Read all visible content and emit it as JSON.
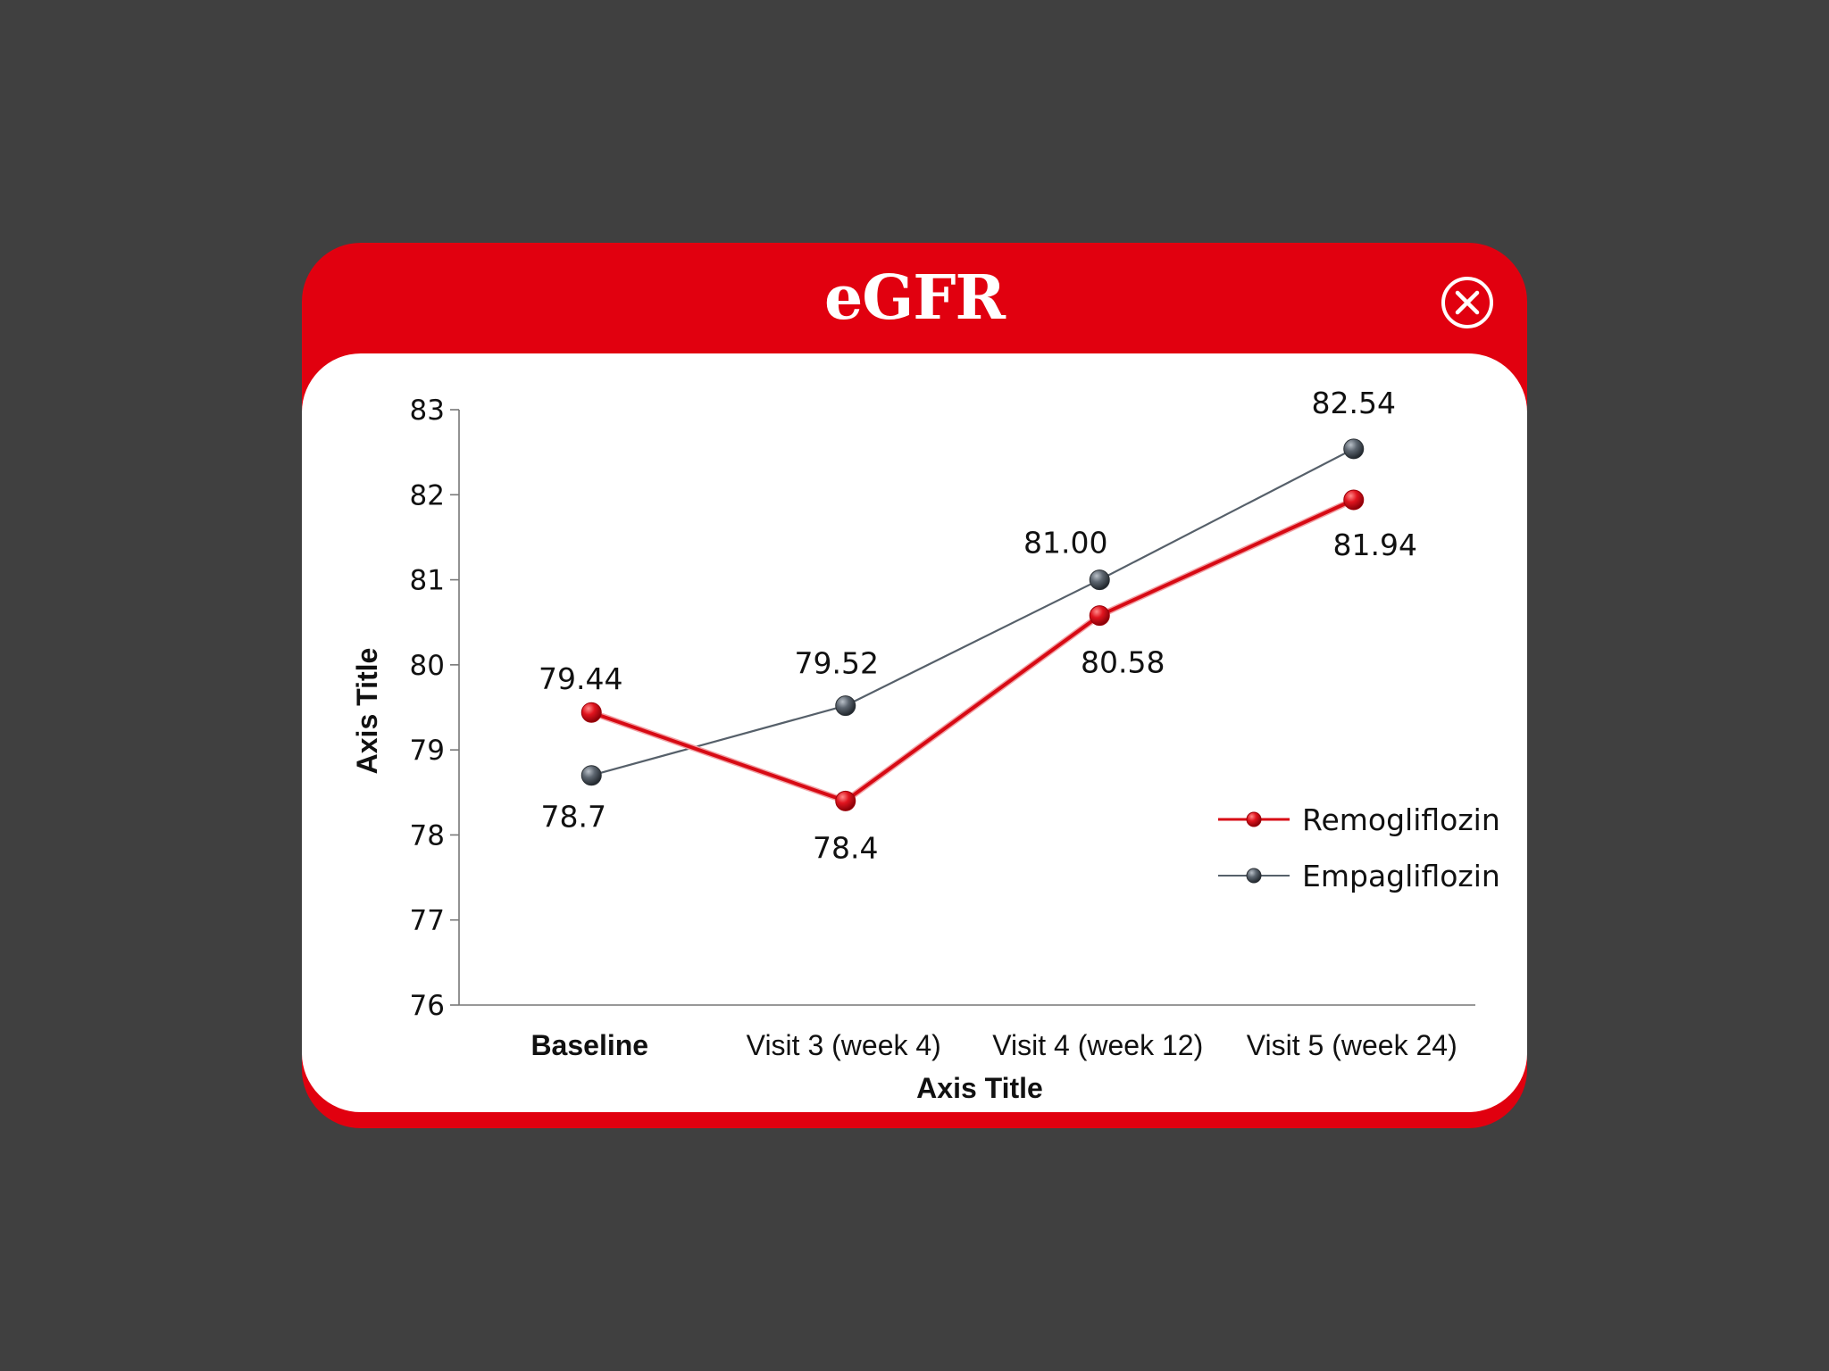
{
  "modal": {
    "title": "eGFR",
    "close_icon": "close-circle-icon"
  },
  "colors": {
    "brand_red": "#e1000f",
    "series_red": "#d70a14",
    "series_gray": "#56606a",
    "backdrop": "#404040"
  },
  "chart_data": {
    "type": "line",
    "categories": [
      "Baseline",
      "Visit 3 (week 4)",
      "Visit 4 (week 12)",
      "Visit 5 (week 24)"
    ],
    "series": [
      {
        "name": "Remogliflozin",
        "values": [
          79.44,
          78.4,
          80.58,
          81.94
        ],
        "labels": [
          "79.44",
          "78.4",
          "80.58",
          "81.94"
        ],
        "color": "#d70a14"
      },
      {
        "name": "Empagliflozin",
        "values": [
          78.7,
          79.52,
          81.0,
          82.54
        ],
        "labels": [
          "78.7",
          "79.52",
          "81.00",
          "82.54"
        ],
        "color": "#56606a"
      }
    ],
    "xlabel": "Axis Title",
    "ylabel": "Axis Title",
    "ylim": [
      76,
      83
    ],
    "yticks": [
      "76",
      "77",
      "78",
      "79",
      "80",
      "81",
      "82",
      "83"
    ],
    "grid": false,
    "legend_position": "right"
  }
}
